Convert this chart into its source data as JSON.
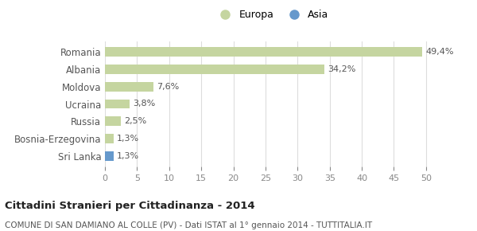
{
  "categories": [
    "Romania",
    "Albania",
    "Moldova",
    "Ucraina",
    "Russia",
    "Bosnia-Erzegovina",
    "Sri Lanka"
  ],
  "values": [
    49.4,
    34.2,
    7.6,
    3.8,
    2.5,
    1.3,
    1.3
  ],
  "labels": [
    "49,4%",
    "34,2%",
    "7,6%",
    "3,8%",
    "2,5%",
    "1,3%",
    "1,3%"
  ],
  "colors": [
    "#c5d5a0",
    "#c5d5a0",
    "#c5d5a0",
    "#c5d5a0",
    "#c5d5a0",
    "#c5d5a0",
    "#6699cc"
  ],
  "legend": [
    {
      "label": "Europa",
      "color": "#c5d5a0"
    },
    {
      "label": "Asia",
      "color": "#6699cc"
    }
  ],
  "xlim": [
    0,
    52
  ],
  "xticks": [
    0,
    5,
    10,
    15,
    20,
    25,
    30,
    35,
    40,
    45,
    50
  ],
  "title": "Cittadini Stranieri per Cittadinanza - 2014",
  "subtitle": "COMUNE DI SAN DAMIANO AL COLLE (PV) - Dati ISTAT al 1° gennaio 2014 - TUTTITALIA.IT",
  "bg_color": "#ffffff",
  "plot_bg_color": "#ffffff",
  "grid_color": "#dddddd",
  "bar_height": 0.55
}
